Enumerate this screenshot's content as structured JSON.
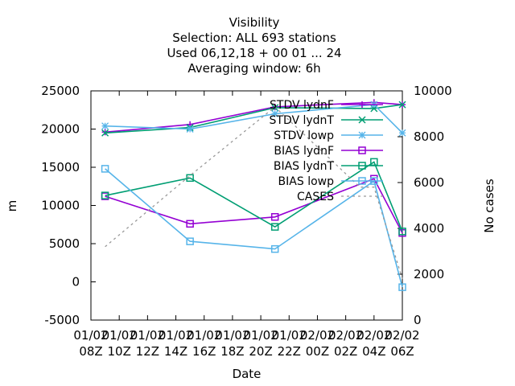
{
  "chart_data": {
    "type": "line",
    "title_lines": [
      "Visibility",
      "Selection: ALL    693 stations",
      "Used  06,12,18  + 00 01 ... 24",
      "Averaging window:  6h"
    ],
    "xlabel": "Date",
    "ylabel": "m",
    "y2label": "No cases",
    "x_ticks": [
      {
        "l1": "01/02",
        "l2": "08Z"
      },
      {
        "l1": "01/02",
        "l2": "10Z"
      },
      {
        "l1": "01/02",
        "l2": "12Z"
      },
      {
        "l1": "01/02",
        "l2": "14Z"
      },
      {
        "l1": "01/02",
        "l2": "16Z"
      },
      {
        "l1": "01/02",
        "l2": "18Z"
      },
      {
        "l1": "01/02",
        "l2": "20Z"
      },
      {
        "l1": "01/02",
        "l2": "22Z"
      },
      {
        "l1": "02/02",
        "l2": "00Z"
      },
      {
        "l1": "02/02",
        "l2": "02Z"
      },
      {
        "l1": "02/02",
        "l2": "04Z"
      },
      {
        "l1": "02/02",
        "l2": "06Z"
      }
    ],
    "xlim_hours": [
      0,
      22
    ],
    "ylim": [
      -5000,
      25000
    ],
    "y_ticks": [
      -5000,
      0,
      5000,
      10000,
      15000,
      20000,
      25000
    ],
    "y2lim": [
      0,
      10000
    ],
    "y2_ticks": [
      0,
      2000,
      4000,
      6000,
      8000,
      10000
    ],
    "legend_position": "top-right",
    "series": [
      {
        "name": "STDV lydnF",
        "axis": "y",
        "color": "#9400d3",
        "marker": "plus",
        "x": [
          1,
          7,
          13,
          20,
          22
        ],
        "y": [
          19600,
          20600,
          22900,
          23500,
          23200
        ]
      },
      {
        "name": "STDV lydnT",
        "axis": "y",
        "color": "#009e73",
        "marker": "x",
        "x": [
          1,
          7,
          13,
          20,
          22
        ],
        "y": [
          19500,
          20200,
          22800,
          22700,
          23200
        ]
      },
      {
        "name": "STDV lowp",
        "axis": "y",
        "color": "#56b4e9",
        "marker": "star",
        "x": [
          1,
          7,
          13,
          20,
          22
        ],
        "y": [
          20400,
          20000,
          22000,
          23200,
          19500
        ]
      },
      {
        "name": "BIAS lydnF",
        "axis": "y",
        "color": "#9400d3",
        "marker": "square",
        "x": [
          1,
          7,
          13,
          20,
          22
        ],
        "y": [
          11200,
          7600,
          8500,
          13500,
          6400
        ]
      },
      {
        "name": "BIAS lydnT",
        "axis": "y",
        "color": "#009e73",
        "marker": "square",
        "x": [
          1,
          7,
          13,
          20,
          22
        ],
        "y": [
          11300,
          13600,
          7200,
          15700,
          6600
        ]
      },
      {
        "name": "BIAS lowp",
        "axis": "y",
        "color": "#56b4e9",
        "marker": "square",
        "x": [
          1,
          7,
          13,
          20,
          22
        ],
        "y": [
          14800,
          5300,
          4300,
          13200,
          -700
        ]
      },
      {
        "name": "CASES",
        "axis": "y2",
        "color": "#999999",
        "marker": "none",
        "dash": "3,4",
        "x": [
          1,
          7,
          13,
          19,
          20,
          22
        ],
        "y": [
          3200,
          6300,
          9300,
          5800,
          5800,
          1800
        ]
      }
    ]
  }
}
